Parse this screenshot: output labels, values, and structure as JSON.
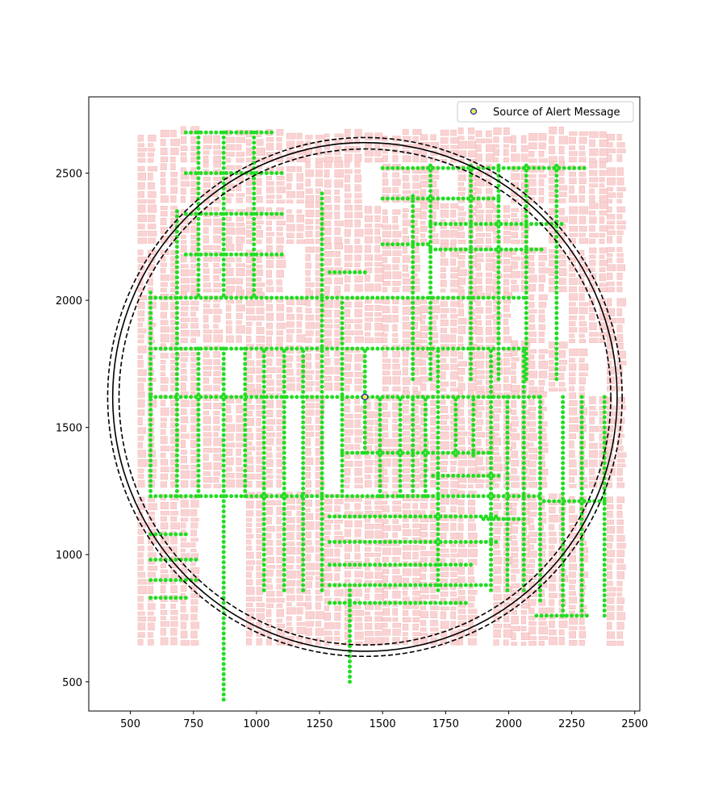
{
  "chart_data": {
    "type": "scatter",
    "title": "",
    "xlabel": "",
    "ylabel": "",
    "xlim": [
      335,
      2520
    ],
    "ylim": [
      385,
      2800
    ],
    "x_ticks": [
      500,
      750,
      1000,
      1250,
      1500,
      1750,
      2000,
      2250,
      2500
    ],
    "y_ticks": [
      500,
      1000,
      1500,
      2000,
      2500
    ],
    "grid": false,
    "legend": {
      "placement": "top-right",
      "entries": [
        {
          "label": "Source of Alert Message",
          "marker": "circle",
          "face_color": "#f2ef3f",
          "edge_color": "#1b2bb8"
        }
      ]
    },
    "source_point": {
      "x": 1430,
      "y": 1620
    },
    "circles": [
      {
        "center": [
          1430,
          1620
        ],
        "radius": 1000,
        "style": "solid"
      },
      {
        "center": [
          1430,
          1620
        ],
        "radius": 1020,
        "style": "dashed"
      },
      {
        "center": [
          1430,
          1620
        ],
        "radius": 975,
        "style": "dashed"
      }
    ],
    "colors": {
      "buildings_fill": "#f9d3d3",
      "buildings_edge": "#f5a8a8",
      "sensor_points": "#22dd22",
      "circle_lines": "#000000"
    },
    "sensor_lines": {
      "x_lines": [
        [
          580,
          1230,
          2040
        ],
        [
          685,
          1230,
          2360
        ],
        [
          770,
          1230,
          1810
        ],
        [
          870,
          430,
          1810
        ],
        [
          955,
          1230,
          1810
        ],
        [
          1030,
          860,
          1810
        ],
        [
          1110,
          860,
          1810
        ],
        [
          1185,
          860,
          1810
        ],
        [
          1260,
          860,
          2420
        ],
        [
          1340,
          1230,
          2000
        ],
        [
          1370,
          500,
          870
        ],
        [
          1430,
          1400,
          1810
        ],
        [
          1490,
          1230,
          1620
        ],
        [
          1570,
          1230,
          1620
        ],
        [
          1620,
          1230,
          1620
        ],
        [
          1670,
          1230,
          1620
        ],
        [
          1720,
          860,
          1810
        ],
        [
          1790,
          1390,
          1620
        ],
        [
          1860,
          1390,
          1620
        ],
        [
          1930,
          860,
          1810
        ],
        [
          1995,
          860,
          1620
        ],
        [
          2060,
          860,
          1810
        ],
        [
          2125,
          820,
          1630
        ],
        [
          2215,
          760,
          1630
        ],
        [
          2290,
          760,
          1630
        ],
        [
          2380,
          760,
          1630
        ],
        [
          1620,
          1690,
          2410
        ],
        [
          1690,
          1690,
          2530
        ],
        [
          1850,
          1690,
          2530
        ],
        [
          1960,
          1690,
          2530
        ],
        [
          2070,
          1690,
          2530
        ],
        [
          2190,
          1690,
          2530
        ],
        [
          770,
          2020,
          2660
        ],
        [
          870,
          2020,
          2660
        ],
        [
          990,
          2020,
          2660
        ]
      ],
      "y_lines": [
        [
          1230,
          580,
          2125
        ],
        [
          1400,
          1340,
          1930
        ],
        [
          1620,
          580,
          2125
        ],
        [
          1810,
          580,
          2070
        ],
        [
          2010,
          580,
          2070
        ],
        [
          2180,
          720,
          1100
        ],
        [
          2340,
          720,
          1100
        ],
        [
          2500,
          720,
          1100
        ],
        [
          2660,
          720,
          1060
        ],
        [
          2110,
          1290,
          1440
        ],
        [
          2220,
          1500,
          1680
        ],
        [
          2400,
          1500,
          1960
        ],
        [
          2520,
          1500,
          2300
        ],
        [
          2300,
          1690,
          2210
        ],
        [
          2200,
          1690,
          2140
        ],
        [
          1080,
          580,
          720
        ],
        [
          980,
          580,
          760
        ],
        [
          900,
          580,
          760
        ],
        [
          830,
          580,
          720
        ],
        [
          1150,
          1290,
          1960
        ],
        [
          1050,
          1290,
          1960
        ],
        [
          960,
          1290,
          1860
        ],
        [
          880,
          1290,
          1930
        ],
        [
          810,
          1290,
          1830
        ],
        [
          1310,
          1700,
          1960
        ],
        [
          1140,
          1900,
          2070
        ],
        [
          1210,
          2140,
          2380
        ],
        [
          760,
          2110,
          2320
        ]
      ]
    }
  }
}
